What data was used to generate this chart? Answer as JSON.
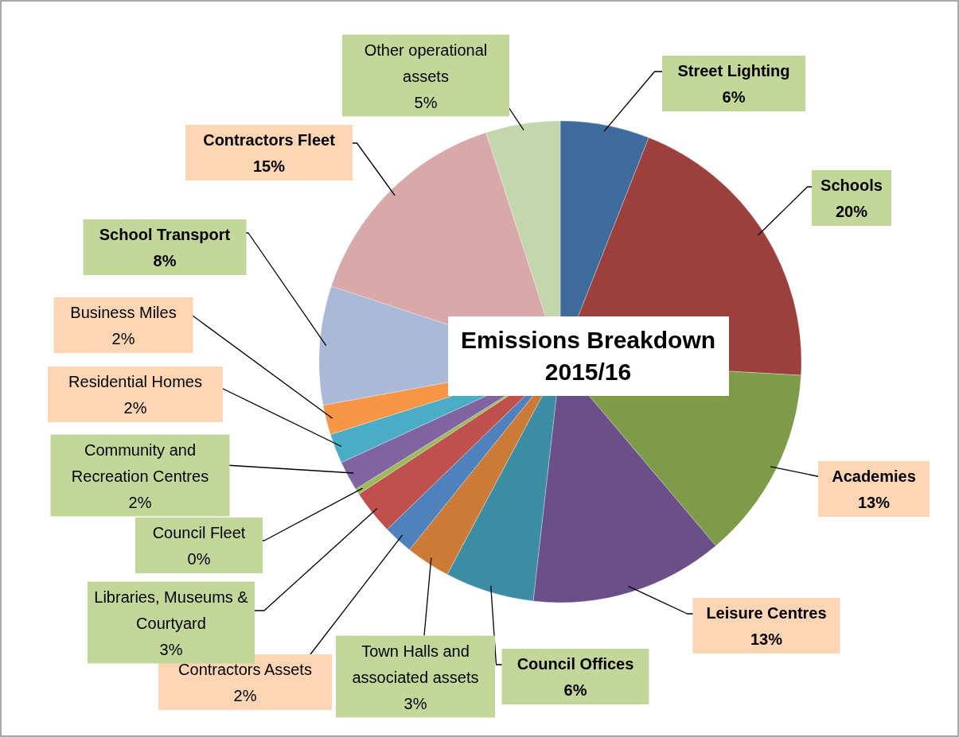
{
  "chart_data": {
    "type": "pie",
    "title": "Emissions Breakdown 2015/16",
    "categories": [
      "Street Lighting",
      "Schools",
      "Academies",
      "Leisure Centres",
      "Council Offices",
      "Town Halls and associated assets",
      "Contractors Assets",
      "Libraries, Museums & Courtyard",
      "Council Fleet",
      "Community and Recreation Centres",
      "Residential Homes",
      "Business Miles",
      "School Transport",
      "Contractors Fleet",
      "Other operational assets"
    ],
    "values": [
      6,
      20,
      13,
      13,
      6,
      3,
      2,
      3,
      0.4,
      2,
      2,
      2,
      8,
      15,
      5
    ],
    "value_labels": [
      "6%",
      "20%",
      "13%",
      "13%",
      "6%",
      "3%",
      "2%",
      "3%",
      "0%",
      "2%",
      "2%",
      "2%",
      "8%",
      "15%",
      "5%"
    ],
    "colors": [
      "#3f6a9c",
      "#9c403e",
      "#7e9b4a",
      "#6a4f88",
      "#3c8da4",
      "#cc7b37",
      "#4f81bd",
      "#c0504d",
      "#9bbb59",
      "#8064a2",
      "#4bacc6",
      "#f79646",
      "#aab9d8",
      "#d9a9a9",
      "#c4d6ad"
    ]
  }
}
